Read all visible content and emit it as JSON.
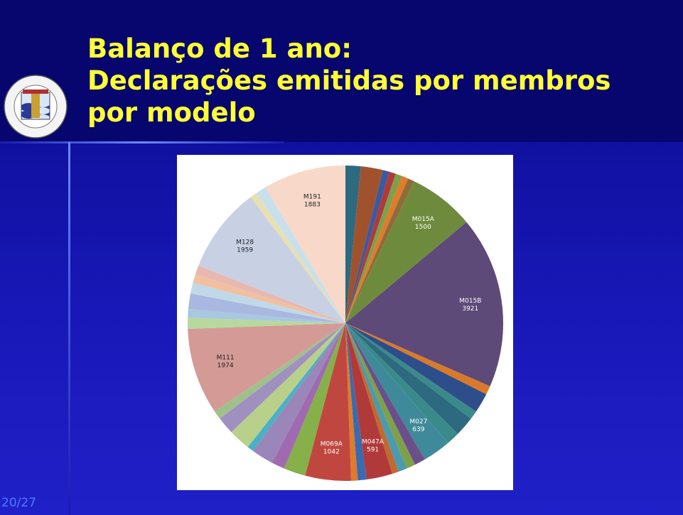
{
  "slide": {
    "title_lines": [
      "Balanço de 1 ano:",
      "Declarações emitidas por membros",
      "por modelo"
    ],
    "page": "20/27"
  },
  "chart_data": {
    "type": "pie",
    "categories": [
      null,
      null,
      null,
      null,
      null,
      null,
      null,
      "M015A",
      "M015B",
      null,
      null,
      null,
      null,
      null,
      "M027",
      null,
      null,
      null,
      null,
      "M047A",
      null,
      null,
      "M069A",
      null,
      null,
      null,
      null,
      null,
      null,
      null,
      "M111",
      null,
      null,
      null,
      null,
      null,
      null,
      "M128",
      null,
      null,
      "M191"
    ],
    "values": [
      350,
      500,
      150,
      150,
      150,
      150,
      150,
      1500,
      3921,
      200,
      450,
      200,
      450,
      300,
      639,
      250,
      200,
      200,
      150,
      591,
      200,
      150,
      1042,
      500,
      300,
      500,
      150,
      500,
      400,
      200,
      1974,
      250,
      200,
      350,
      250,
      200,
      200,
      1959,
      150,
      250,
      1883
    ],
    "colors": [
      "#2e6a7f",
      "#a0522d",
      "#3b5aa0",
      "#b03a3a",
      "#7ea04a",
      "#e07b2a",
      "#8f6b3a",
      "#6e8b3d",
      "#5e4a78",
      "#d97a2a",
      "#2d4e8a",
      "#3a8a8a",
      "#2e6a7f",
      "#3a8a8a",
      "#3f8a9a",
      "#6b4f8a",
      "#7ea04a",
      "#4a9ab0",
      "#c06a30",
      "#b03a3a",
      "#3a6ab0",
      "#e07b2a",
      "#c0473f",
      "#86b04a",
      "#a06ab0",
      "#9a86b8",
      "#4ab0c8",
      "#b8d08a",
      "#a090c0",
      "#9fc08a",
      "#d49a96",
      "#b8d8a0",
      "#a8c8e0",
      "#a8b8e0",
      "#c0d8e8",
      "#f0c0a0",
      "#e8b8b0",
      "#c8d0e4",
      "#e8e0b0",
      "#c8e0ec",
      "#f8d8c8"
    ]
  }
}
